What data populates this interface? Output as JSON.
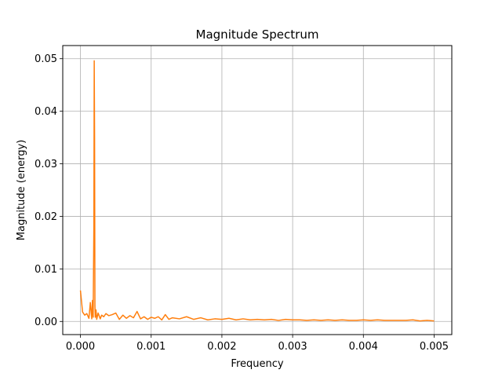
{
  "chart_data": {
    "type": "line",
    "title": "Magnitude Spectrum",
    "xlabel": "Frequency",
    "ylabel": "Magnitude (energy)",
    "xlim": [
      -0.00025,
      0.00525
    ],
    "ylim": [
      -0.0025,
      0.0525
    ],
    "xticks": [
      0.0,
      0.001,
      0.002,
      0.003,
      0.004,
      0.005
    ],
    "xtick_labels": [
      "0.000",
      "0.001",
      "0.002",
      "0.003",
      "0.004",
      "0.005"
    ],
    "yticks": [
      0.0,
      0.01,
      0.02,
      0.03,
      0.04,
      0.05
    ],
    "ytick_labels": [
      "0.00",
      "0.01",
      "0.02",
      "0.03",
      "0.04",
      "0.05"
    ],
    "grid": true,
    "line_color": "#ff7f0e",
    "series": [
      {
        "x": [
          0.0,
          3e-05,
          6e-05,
          9e-05,
          0.00012,
          0.00014,
          0.00016,
          0.00017,
          0.00018,
          0.00019,
          0.000195,
          0.0002,
          0.000205,
          0.00021,
          0.00022,
          0.00023,
          0.00025,
          0.00028,
          0.0003,
          0.00033,
          0.00036,
          0.0004,
          0.00045,
          0.0005,
          0.00055,
          0.0006,
          0.00065,
          0.0007,
          0.00075,
          0.0008,
          0.00085,
          0.0009,
          0.00095,
          0.001,
          0.00105,
          0.0011,
          0.00115,
          0.0012,
          0.00125,
          0.0013,
          0.0014,
          0.0015,
          0.0016,
          0.0017,
          0.0018,
          0.0019,
          0.002,
          0.0021,
          0.0022,
          0.0023,
          0.0024,
          0.0025,
          0.0026,
          0.0027,
          0.0028,
          0.0029,
          0.003,
          0.0031,
          0.0032,
          0.0033,
          0.0034,
          0.0035,
          0.0036,
          0.0037,
          0.0038,
          0.0039,
          0.004,
          0.0041,
          0.0042,
          0.0043,
          0.0044,
          0.0045,
          0.0046,
          0.0047,
          0.0048,
          0.0049,
          0.005
        ],
        "y": [
          0.0059,
          0.0018,
          0.0012,
          0.0015,
          0.0006,
          0.0036,
          0.0005,
          0.004,
          0.0008,
          0.018,
          0.0496,
          0.035,
          0.003,
          0.0008,
          0.0022,
          0.0004,
          0.0016,
          0.0005,
          0.0012,
          0.0009,
          0.0015,
          0.0011,
          0.0013,
          0.0016,
          0.0004,
          0.0012,
          0.0006,
          0.0011,
          0.0007,
          0.0019,
          0.0005,
          0.0009,
          0.0004,
          0.0008,
          0.0006,
          0.0009,
          0.0003,
          0.0013,
          0.0004,
          0.0007,
          0.0005,
          0.0009,
          0.0004,
          0.0007,
          0.0003,
          0.0005,
          0.0004,
          0.0006,
          0.0003,
          0.0005,
          0.0003,
          0.0004,
          0.0003,
          0.0004,
          0.0002,
          0.0004,
          0.0003,
          0.0003,
          0.0002,
          0.0003,
          0.0002,
          0.0003,
          0.0002,
          0.0003,
          0.0002,
          0.0002,
          0.0003,
          0.0002,
          0.0003,
          0.0002,
          0.0002,
          0.0002,
          0.0002,
          0.0003,
          0.0001,
          0.0002,
          0.0001
        ]
      }
    ]
  }
}
